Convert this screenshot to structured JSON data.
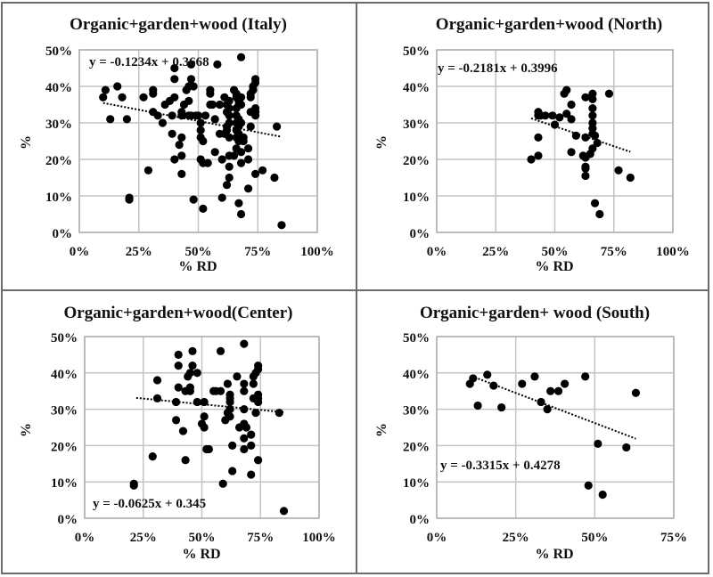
{
  "chart_data": [
    {
      "type": "scatter",
      "id": "italy",
      "title": "Organic+garden+wood (Italy)",
      "xlabel": "% RD",
      "ylabel": "%",
      "xlim": [
        0,
        1
      ],
      "ylim": [
        0,
        0.5
      ],
      "xticks": [
        "0%",
        "25%",
        "50%",
        "75%",
        "100%"
      ],
      "yticks": [
        "0%",
        "10%",
        "20%",
        "30%",
        "40%",
        "50%"
      ],
      "grid": true,
      "trendline": {
        "label": "y = -0.1234x + 0.3668",
        "slope": -0.1234,
        "intercept": 0.3668,
        "x_range": [
          0.1,
          0.85
        ],
        "position": "top-left"
      },
      "points": [
        [
          0.1,
          0.37
        ],
        [
          0.11,
          0.39
        ],
        [
          0.13,
          0.31
        ],
        [
          0.16,
          0.4
        ],
        [
          0.18,
          0.37
        ],
        [
          0.2,
          0.31
        ],
        [
          0.21,
          0.09
        ],
        [
          0.21,
          0.095
        ],
        [
          0.27,
          0.37
        ],
        [
          0.29,
          0.17
        ],
        [
          0.31,
          0.39
        ],
        [
          0.31,
          0.38
        ],
        [
          0.31,
          0.33
        ],
        [
          0.33,
          0.32
        ],
        [
          0.35,
          0.3
        ],
        [
          0.36,
          0.35
        ],
        [
          0.38,
          0.36
        ],
        [
          0.39,
          0.32
        ],
        [
          0.39,
          0.27
        ],
        [
          0.4,
          0.45
        ],
        [
          0.4,
          0.42
        ],
        [
          0.4,
          0.37
        ],
        [
          0.4,
          0.2
        ],
        [
          0.42,
          0.24
        ],
        [
          0.43,
          0.26
        ],
        [
          0.43,
          0.21
        ],
        [
          0.43,
          0.16
        ],
        [
          0.43,
          0.33
        ],
        [
          0.43,
          0.32
        ],
        [
          0.44,
          0.35
        ],
        [
          0.45,
          0.39
        ],
        [
          0.46,
          0.4
        ],
        [
          0.46,
          0.36
        ],
        [
          0.46,
          0.32
        ],
        [
          0.47,
          0.46
        ],
        [
          0.47,
          0.42
        ],
        [
          0.47,
          0.32
        ],
        [
          0.48,
          0.4
        ],
        [
          0.48,
          0.09
        ],
        [
          0.49,
          0.32
        ],
        [
          0.5,
          0.32
        ],
        [
          0.51,
          0.3
        ],
        [
          0.51,
          0.28
        ],
        [
          0.51,
          0.26
        ],
        [
          0.51,
          0.2
        ],
        [
          0.52,
          0.25
        ],
        [
          0.52,
          0.19
        ],
        [
          0.52,
          0.065
        ],
        [
          0.53,
          0.32
        ],
        [
          0.54,
          0.19
        ],
        [
          0.55,
          0.39
        ],
        [
          0.55,
          0.35
        ],
        [
          0.55,
          0.38
        ],
        [
          0.56,
          0.35
        ],
        [
          0.57,
          0.31
        ],
        [
          0.57,
          0.22
        ],
        [
          0.58,
          0.46
        ],
        [
          0.59,
          0.35
        ],
        [
          0.59,
          0.27
        ],
        [
          0.6,
          0.2
        ],
        [
          0.6,
          0.095
        ],
        [
          0.61,
          0.37
        ],
        [
          0.61,
          0.27
        ],
        [
          0.62,
          0.28
        ],
        [
          0.62,
          0.29
        ],
        [
          0.62,
          0.33
        ],
        [
          0.62,
          0.35
        ],
        [
          0.63,
          0.36
        ],
        [
          0.63,
          0.34
        ],
        [
          0.63,
          0.32
        ],
        [
          0.63,
          0.3
        ],
        [
          0.63,
          0.26
        ],
        [
          0.63,
          0.21
        ],
        [
          0.63,
          0.18
        ],
        [
          0.63,
          0.15
        ],
        [
          0.62,
          0.13
        ],
        [
          0.65,
          0.21
        ],
        [
          0.65,
          0.39
        ],
        [
          0.66,
          0.38
        ],
        [
          0.66,
          0.37
        ],
        [
          0.66,
          0.34
        ],
        [
          0.66,
          0.32
        ],
        [
          0.66,
          0.3
        ],
        [
          0.66,
          0.28
        ],
        [
          0.66,
          0.26
        ],
        [
          0.66,
          0.23
        ],
        [
          0.67,
          0.36
        ],
        [
          0.67,
          0.35
        ],
        [
          0.67,
          0.31
        ],
        [
          0.67,
          0.29
        ],
        [
          0.67,
          0.27
        ],
        [
          0.67,
          0.25
        ],
        [
          0.67,
          0.08
        ],
        [
          0.68,
          0.48
        ],
        [
          0.68,
          0.37
        ],
        [
          0.68,
          0.22
        ],
        [
          0.68,
          0.19
        ],
        [
          0.68,
          0.05
        ],
        [
          0.68,
          0.35
        ],
        [
          0.68,
          0.3
        ],
        [
          0.69,
          0.26
        ],
        [
          0.69,
          0.25
        ],
        [
          0.71,
          0.23
        ],
        [
          0.71,
          0.2
        ],
        [
          0.71,
          0.12
        ],
        [
          0.72,
          0.38
        ],
        [
          0.72,
          0.37
        ],
        [
          0.72,
          0.33
        ],
        [
          0.72,
          0.29
        ],
        [
          0.73,
          0.39
        ],
        [
          0.73,
          0.4
        ],
        [
          0.74,
          0.42
        ],
        [
          0.74,
          0.41
        ],
        [
          0.74,
          0.34
        ],
        [
          0.74,
          0.33
        ],
        [
          0.74,
          0.32
        ],
        [
          0.74,
          0.16
        ],
        [
          0.77,
          0.17
        ],
        [
          0.82,
          0.15
        ],
        [
          0.83,
          0.29
        ],
        [
          0.85,
          0.02
        ]
      ]
    },
    {
      "type": "scatter",
      "id": "north",
      "title": "Organic+garden+wood  (North)",
      "xlabel": "% RD",
      "ylabel": "%",
      "xlim": [
        0,
        1
      ],
      "ylim": [
        0,
        0.5
      ],
      "xticks": [
        "0%",
        "25%",
        "50%",
        "75%",
        "100%"
      ],
      "yticks": [
        "0%",
        "10%",
        "20%",
        "30%",
        "40%",
        "50%"
      ],
      "grid": true,
      "trendline": {
        "label": "y = -0.2181x + 0.3996",
        "slope": -0.2181,
        "intercept": 0.3996,
        "x_range": [
          0.4,
          0.82
        ],
        "position": "top-left"
      },
      "points": [
        [
          0.4,
          0.2
        ],
        [
          0.43,
          0.33
        ],
        [
          0.43,
          0.32
        ],
        [
          0.43,
          0.26
        ],
        [
          0.43,
          0.21
        ],
        [
          0.44,
          0.32
        ],
        [
          0.46,
          0.32
        ],
        [
          0.49,
          0.32
        ],
        [
          0.5,
          0.295
        ],
        [
          0.52,
          0.315
        ],
        [
          0.54,
          0.38
        ],
        [
          0.55,
          0.39
        ],
        [
          0.55,
          0.325
        ],
        [
          0.57,
          0.35
        ],
        [
          0.57,
          0.31
        ],
        [
          0.57,
          0.22
        ],
        [
          0.59,
          0.265
        ],
        [
          0.62,
          0.21
        ],
        [
          0.63,
          0.37
        ],
        [
          0.63,
          0.26
        ],
        [
          0.63,
          0.205
        ],
        [
          0.63,
          0.18
        ],
        [
          0.63,
          0.175
        ],
        [
          0.63,
          0.155
        ],
        [
          0.65,
          0.215
        ],
        [
          0.66,
          0.38
        ],
        [
          0.66,
          0.365
        ],
        [
          0.66,
          0.34
        ],
        [
          0.66,
          0.32
        ],
        [
          0.66,
          0.3
        ],
        [
          0.66,
          0.285
        ],
        [
          0.66,
          0.27
        ],
        [
          0.66,
          0.23
        ],
        [
          0.67,
          0.265
        ],
        [
          0.67,
          0.08
        ],
        [
          0.68,
          0.245
        ],
        [
          0.69,
          0.05
        ],
        [
          0.73,
          0.38
        ],
        [
          0.77,
          0.17
        ],
        [
          0.82,
          0.15
        ]
      ]
    },
    {
      "type": "scatter",
      "id": "center",
      "title": "Organic+garden+wood(Center)",
      "xlabel": "% RD",
      "ylabel": "%",
      "xlim": [
        0,
        1
      ],
      "ylim": [
        0,
        0.5
      ],
      "xticks": [
        "0%",
        "25%",
        "50%",
        "75%",
        "100%"
      ],
      "yticks": [
        "0%",
        "10%",
        "20%",
        "30%",
        "40%",
        "50%"
      ],
      "grid": true,
      "trendline": {
        "label": "y = -0.0625x + 0.345",
        "slope": -0.0625,
        "intercept": 0.345,
        "x_range": [
          0.22,
          0.85
        ],
        "position": "bottom-left"
      },
      "points": [
        [
          0.21,
          0.09
        ],
        [
          0.21,
          0.095
        ],
        [
          0.29,
          0.17
        ],
        [
          0.31,
          0.38
        ],
        [
          0.31,
          0.33
        ],
        [
          0.39,
          0.32
        ],
        [
          0.39,
          0.27
        ],
        [
          0.4,
          0.45
        ],
        [
          0.4,
          0.42
        ],
        [
          0.4,
          0.36
        ],
        [
          0.42,
          0.24
        ],
        [
          0.43,
          0.35
        ],
        [
          0.43,
          0.16
        ],
        [
          0.44,
          0.39
        ],
        [
          0.45,
          0.4
        ],
        [
          0.45,
          0.36
        ],
        [
          0.45,
          0.35
        ],
        [
          0.46,
          0.46
        ],
        [
          0.46,
          0.42
        ],
        [
          0.48,
          0.4
        ],
        [
          0.48,
          0.32
        ],
        [
          0.5,
          0.26
        ],
        [
          0.51,
          0.32
        ],
        [
          0.51,
          0.28
        ],
        [
          0.51,
          0.25
        ],
        [
          0.52,
          0.19
        ],
        [
          0.53,
          0.19
        ],
        [
          0.55,
          0.35
        ],
        [
          0.56,
          0.35
        ],
        [
          0.58,
          0.46
        ],
        [
          0.58,
          0.35
        ],
        [
          0.59,
          0.095
        ],
        [
          0.6,
          0.27
        ],
        [
          0.61,
          0.37
        ],
        [
          0.61,
          0.29
        ],
        [
          0.62,
          0.34
        ],
        [
          0.62,
          0.33
        ],
        [
          0.62,
          0.32
        ],
        [
          0.62,
          0.3
        ],
        [
          0.62,
          0.28
        ],
        [
          0.63,
          0.2
        ],
        [
          0.63,
          0.13
        ],
        [
          0.65,
          0.39
        ],
        [
          0.66,
          0.25
        ],
        [
          0.68,
          0.48
        ],
        [
          0.68,
          0.37
        ],
        [
          0.68,
          0.35
        ],
        [
          0.68,
          0.3
        ],
        [
          0.68,
          0.26
        ],
        [
          0.68,
          0.22
        ],
        [
          0.68,
          0.19
        ],
        [
          0.69,
          0.25
        ],
        [
          0.71,
          0.23
        ],
        [
          0.71,
          0.2
        ],
        [
          0.71,
          0.12
        ],
        [
          0.72,
          0.39
        ],
        [
          0.72,
          0.37
        ],
        [
          0.72,
          0.33
        ],
        [
          0.73,
          0.29
        ],
        [
          0.73,
          0.4
        ],
        [
          0.74,
          0.42
        ],
        [
          0.74,
          0.41
        ],
        [
          0.74,
          0.34
        ],
        [
          0.74,
          0.33
        ],
        [
          0.74,
          0.32
        ],
        [
          0.74,
          0.16
        ],
        [
          0.83,
          0.29
        ],
        [
          0.85,
          0.02
        ]
      ]
    },
    {
      "type": "scatter",
      "id": "south",
      "title": "Organic+garden+  wood (South)",
      "xlabel": "% RD",
      "ylabel": "%",
      "xlim": [
        0,
        0.75
      ],
      "ylim": [
        0,
        0.5
      ],
      "xticks": [
        "0%",
        "25%",
        "50%",
        "75%"
      ],
      "yticks": [
        "0%",
        "10%",
        "20%",
        "30%",
        "40%",
        "50%"
      ],
      "grid": true,
      "trendline": {
        "label": "y = -0.3315x + 0.4278",
        "slope": -0.3315,
        "intercept": 0.4278,
        "x_range": [
          0.11,
          0.63
        ],
        "position": "bottom-left"
      },
      "points": [
        [
          0.105,
          0.37
        ],
        [
          0.115,
          0.385
        ],
        [
          0.13,
          0.31
        ],
        [
          0.16,
          0.395
        ],
        [
          0.18,
          0.365
        ],
        [
          0.205,
          0.305
        ],
        [
          0.27,
          0.37
        ],
        [
          0.31,
          0.39
        ],
        [
          0.33,
          0.32
        ],
        [
          0.35,
          0.3
        ],
        [
          0.36,
          0.35
        ],
        [
          0.385,
          0.35
        ],
        [
          0.405,
          0.37
        ],
        [
          0.47,
          0.39
        ],
        [
          0.48,
          0.09
        ],
        [
          0.51,
          0.205
        ],
        [
          0.525,
          0.065
        ],
        [
          0.6,
          0.195
        ],
        [
          0.63,
          0.345
        ]
      ]
    }
  ]
}
